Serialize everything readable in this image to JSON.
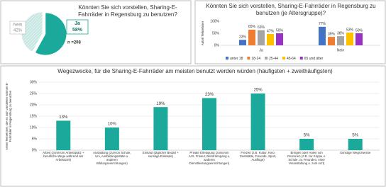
{
  "chart_data": [
    {
      "type": "pie",
      "title": "Könnten Sie sich vorstellen, Sharing-E-Fahrräder in Regensburg zu benutzen?",
      "categories": [
        "Nein",
        "Ja"
      ],
      "values": [
        42,
        58
      ],
      "value_labels": [
        "42%",
        "58%"
      ],
      "colors": [
        "#bfe3df",
        "#1aa99a"
      ],
      "annotation": "n =208"
    },
    {
      "type": "grouped-bar",
      "title": "Könnten Sie sich vorstellen, Sharing-E-Fahrräder in Regensburg zu benutzen (je Altersgruppe)?",
      "y_label": "Anteil Teilnehmer",
      "categories": [
        "Ja",
        "Nein"
      ],
      "series": [
        {
          "name": "unter 18",
          "color": "#4472c4",
          "values": [
            23,
            77
          ],
          "value_labels": [
            "23%",
            "77%"
          ]
        },
        {
          "name": "18-24",
          "color": "#ed7d31",
          "values": [
            65,
            35
          ],
          "value_labels": [
            "65%",
            "35%"
          ]
        },
        {
          "name": "25-44",
          "color": "#a5a5a5",
          "values": [
            63,
            38
          ],
          "value_labels": [
            "63%",
            "38%"
          ]
        },
        {
          "name": "45-64",
          "color": "#ffc000",
          "values": [
            47,
            53
          ],
          "value_labels": [
            "47%",
            "53%"
          ]
        },
        {
          "name": "65 und älter",
          "color": "#9b30c8",
          "values": [
            50,
            50
          ],
          "value_labels": [
            "50%",
            "50%"
          ]
        }
      ],
      "ylim": [
        0,
        100
      ],
      "yticks": [
        {
          "value": 0,
          "label": "0%"
        },
        {
          "value": 50,
          "label": "50%"
        },
        {
          "value": 100,
          "label": "100%"
        }
      ],
      "legend": "bottom"
    },
    {
      "type": "bar",
      "title": "Wegezwecke, für die Sharing-E-Fahrräder am meisten benutzt werden würden (häufigsten + zweithäufigsten)",
      "y_label": "Anteil Teilnehmer, die es sich vorstellen können E-Fahrräder in Regensburg zu benutzen",
      "categories": [
        "Arbeit (zum/vom Arbeitsplatz + berufliche Wege während der Arbeitszeit)",
        "Ausbildung (zur/von Schule, Uni, Ausbildungsstätte o. anderen Bildungseinrichtungen)",
        "Einkauf (täglicher Bedarf + sonstige Einkäufe)",
        "Private Erledigung (zum/vom Arzt, Friseur, Behördengang u. anderen Dienstleistungseinrichtungen)",
        "Freizeit (z.B. Kultur, Kino, Gaststätte, Freunde, Sport, Ausflüge)",
        "Bringen oder Holen von Personen (z.B. zur Krippe o. Schule, zu Freunden, einer Veranstaltung o. zum Arzt)",
        "Sonstige Wegezwecke"
      ],
      "values": [
        13,
        10,
        19,
        23,
        25,
        5,
        5
      ],
      "value_labels": [
        "13%",
        "10%",
        "19%",
        "23%",
        "25%",
        "5%",
        "5%"
      ],
      "color": "#1aa99a",
      "ylim": [
        0,
        30
      ],
      "yticks": [
        {
          "value": 0,
          "label": "0%"
        },
        {
          "value": 5,
          "label": "5%"
        },
        {
          "value": 10,
          "label": "10%"
        },
        {
          "value": 15,
          "label": "15%"
        },
        {
          "value": 20,
          "label": "20%"
        },
        {
          "value": 25,
          "label": "25%"
        },
        {
          "value": 30,
          "label": "30%"
        }
      ],
      "grid": true
    }
  ]
}
